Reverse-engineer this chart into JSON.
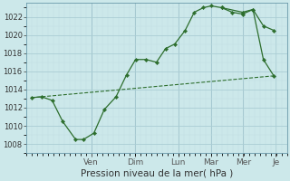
{
  "xlabel": "Pression niveau de la mer( hPa )",
  "background_color": "#cce8ea",
  "grid_color_major": "#aacdd4",
  "grid_color_minor": "#c0dde2",
  "line_color": "#2d6e2d",
  "ylim": [
    1007,
    1023.5
  ],
  "yticks": [
    1008,
    1010,
    1012,
    1014,
    1016,
    1018,
    1020,
    1022
  ],
  "day_labels": [
    "Ven",
    "Dim",
    "Lun",
    "Mar",
    "Mer",
    "Je"
  ],
  "day_x": [
    0.25,
    0.417,
    0.583,
    0.708,
    0.833,
    0.958
  ],
  "xlim": [
    0.0,
    1.0
  ],
  "series1_x": [
    0.02,
    0.06,
    0.1,
    0.14,
    0.19,
    0.22,
    0.26,
    0.3,
    0.345,
    0.385,
    0.42,
    0.46,
    0.5,
    0.535,
    0.57,
    0.61,
    0.645,
    0.68,
    0.71,
    0.75,
    0.79,
    0.83,
    0.87,
    0.91,
    0.95
  ],
  "series1_y": [
    1013.1,
    1013.2,
    1012.8,
    1010.5,
    1008.5,
    1008.5,
    1009.2,
    1011.8,
    1013.2,
    1015.6,
    1017.3,
    1017.3,
    1017.0,
    1018.5,
    1019.0,
    1020.5,
    1022.5,
    1023.0,
    1023.2,
    1023.0,
    1022.5,
    1022.3,
    1022.8,
    1021.0,
    1020.5
  ],
  "series2_x": [
    0.02,
    0.95
  ],
  "series2_y": [
    1013.1,
    1015.5
  ],
  "series3_x": [
    0.75,
    0.83,
    0.87,
    0.91,
    0.95
  ],
  "series3_y": [
    1023.0,
    1022.5,
    1022.8,
    1017.3,
    1015.5
  ]
}
